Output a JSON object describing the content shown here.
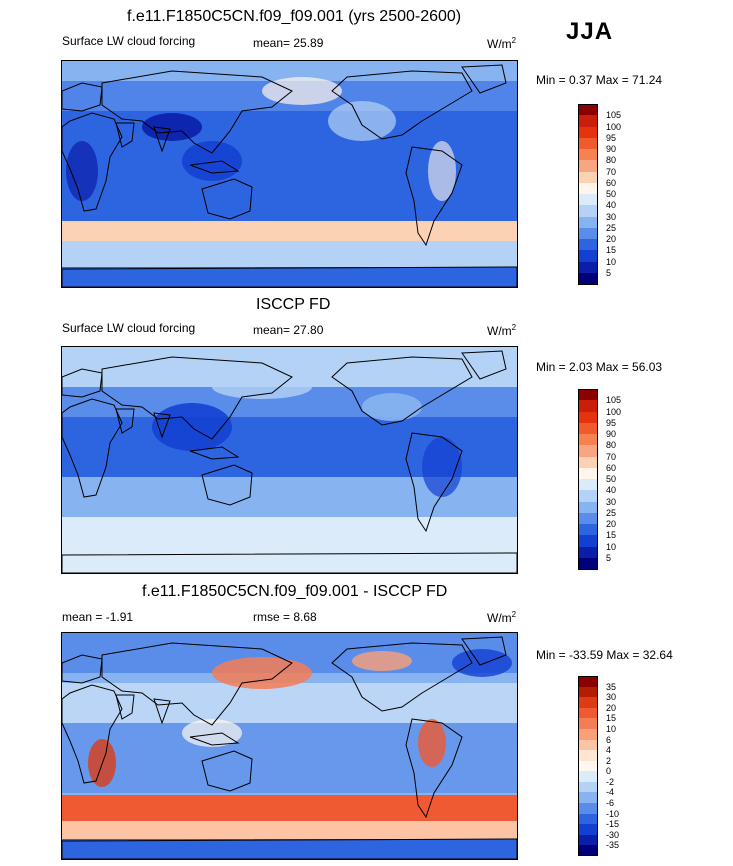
{
  "season": "JJA",
  "panels": [
    {
      "id": "model",
      "title": "f.e11.F1850C5CN.f09_f09.001 (yrs 2500-2600)",
      "left_label": "Surface LW cloud forcing",
      "mid_label": "mean=  25.89",
      "units": "W/m",
      "units_sup": "2",
      "minmax": "Min =   0.37 Max =  71.24",
      "cbar_labels": [
        "105",
        "100",
        "95",
        "90",
        "80",
        "70",
        "60",
        "50",
        "40",
        "30",
        "25",
        "20",
        "15",
        "10",
        "5"
      ],
      "cbar_colors": [
        "#8b0000",
        "#c81e0a",
        "#e6330f",
        "#f05a2d",
        "#f58250",
        "#faa582",
        "#fcd2b4",
        "#fff5eb",
        "#dcebfa",
        "#b4d2f5",
        "#87b4f0",
        "#5a8cea",
        "#2d64e0",
        "#1440d2",
        "#0a1eaa",
        "#000078"
      ]
    },
    {
      "id": "obs",
      "title": "ISCCP FD",
      "left_label": "Surface LW cloud forcing",
      "mid_label": "mean=  27.80",
      "units": "W/m",
      "units_sup": "2",
      "minmax": "Min =   2.03 Max =  56.03",
      "cbar_labels": [
        "105",
        "100",
        "95",
        "90",
        "80",
        "70",
        "60",
        "50",
        "40",
        "30",
        "25",
        "20",
        "15",
        "10",
        "5"
      ],
      "cbar_colors": [
        "#8b0000",
        "#c81e0a",
        "#e6330f",
        "#f05a2d",
        "#f58250",
        "#faa582",
        "#fcd2b4",
        "#fff5eb",
        "#dcebfa",
        "#b4d2f5",
        "#87b4f0",
        "#5a8cea",
        "#2d64e0",
        "#1440d2",
        "#0a1eaa",
        "#000078"
      ]
    },
    {
      "id": "diff",
      "title": "f.e11.F1850C5CN.f09_f09.001 - ISCCP FD",
      "left_label": "mean =  -1.91",
      "mid_label": "rmse =   8.68",
      "units": "W/m",
      "units_sup": "2",
      "minmax": "Min = -33.59 Max =  32.64",
      "cbar_labels": [
        "35",
        "30",
        "20",
        "15",
        "10",
        "6",
        "4",
        "2",
        "0",
        "-2",
        "-4",
        "-6",
        "-10",
        "-15",
        "-30",
        "-35"
      ],
      "cbar_colors": [
        "#8b0000",
        "#b41e00",
        "#dc3c14",
        "#f05a32",
        "#f57d55",
        "#faa078",
        "#fcc3a5",
        "#ffe6d2",
        "#fff8f0",
        "#dcebfa",
        "#b4d2f5",
        "#87b4f0",
        "#5a8cea",
        "#2d64e0",
        "#1440d2",
        "#0a1eaa",
        "#000078"
      ]
    }
  ],
  "chart_data": {
    "type": "heatmap",
    "title": "JJA Surface LW cloud forcing: f.e11.F1850C5CN.f09_f09.001 (yrs 2500-2600) vs ISCCP FD",
    "units": "W/m2",
    "panels": [
      {
        "name": "f.e11.F1850C5CN.f09_f09.001 (yrs 2500-2600)",
        "mean": 25.89,
        "min": 0.37,
        "max": 71.24,
        "levels": [
          5,
          10,
          15,
          20,
          25,
          30,
          40,
          50,
          60,
          70,
          80,
          90,
          95,
          100,
          105
        ]
      },
      {
        "name": "ISCCP FD",
        "mean": 27.8,
        "min": 2.03,
        "max": 56.03,
        "levels": [
          5,
          10,
          15,
          20,
          25,
          30,
          40,
          50,
          60,
          70,
          80,
          90,
          95,
          100,
          105
        ]
      },
      {
        "name": "f.e11.F1850C5CN.f09_f09.001 - ISCCP FD",
        "mean": -1.91,
        "rmse": 8.68,
        "min": -33.59,
        "max": 32.64,
        "levels": [
          -35,
          -30,
          -15,
          -10,
          -6,
          -4,
          -2,
          0,
          2,
          4,
          6,
          10,
          15,
          20,
          30,
          35
        ]
      }
    ]
  }
}
